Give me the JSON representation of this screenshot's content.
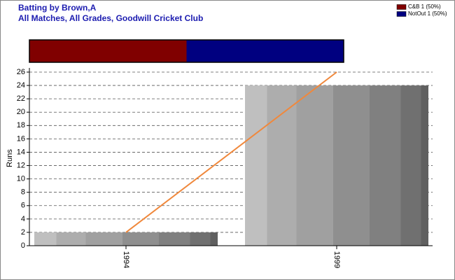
{
  "chart_data": [
    {
      "type": "bar",
      "title": "Batting by Brown,A",
      "subtitle": "All Matches, All Grades, Goodwill Cricket Club",
      "categories": [
        "1994",
        "1999"
      ],
      "values": [
        2,
        24
      ],
      "line": {
        "values": [
          2,
          26
        ],
        "color": "#f0883c"
      },
      "ylabel": "Runs",
      "ylim": [
        0,
        26
      ],
      "yticks": [
        0,
        2,
        4,
        6,
        8,
        10,
        12,
        14,
        16,
        18,
        20,
        22,
        24,
        26
      ],
      "grid": true
    },
    {
      "type": "stacked-bar-h",
      "xlim": [
        0,
        100
      ],
      "series": [
        {
          "name": "C&B 1 (50%)",
          "color": "#800000",
          "values": [
            50
          ]
        },
        {
          "name": "NotOut 1 (50%)",
          "color": "#000080",
          "values": [
            50
          ]
        }
      ]
    }
  ]
}
